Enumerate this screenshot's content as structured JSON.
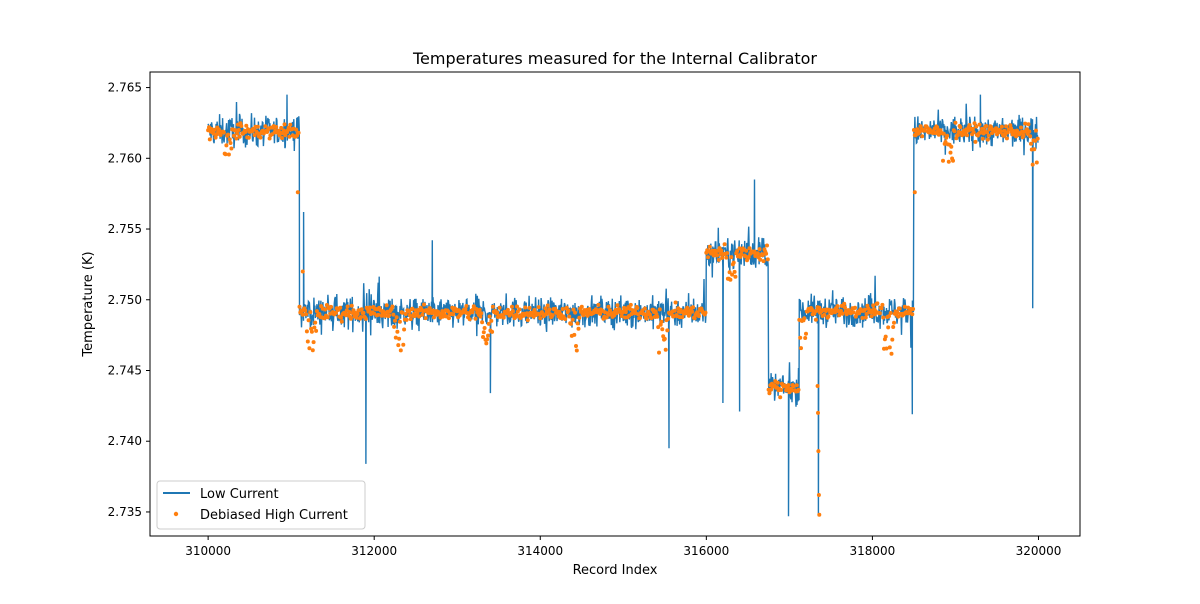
{
  "chart_data": {
    "type": "line",
    "title": "Temperatures measured for the Internal Calibrator",
    "xlabel": "Record Index",
    "ylabel": "Temperature (K)",
    "xlim": [
      309300,
      320500
    ],
    "ylim": [
      2.7333,
      2.7661
    ],
    "xticks": [
      310000,
      312000,
      314000,
      316000,
      318000,
      320000
    ],
    "xtick_labels": [
      "310000",
      "312000",
      "314000",
      "316000",
      "318000",
      "320000"
    ],
    "yticks": [
      2.735,
      2.74,
      2.745,
      2.75,
      2.755,
      2.76,
      2.765
    ],
    "ytick_labels": [
      "2.735",
      "2.740",
      "2.745",
      "2.750",
      "2.755",
      "2.760",
      "2.765"
    ],
    "legend": {
      "position": "lower-left"
    },
    "colors": {
      "low": "#1f77b4",
      "high": "#ff7f0e"
    },
    "segments": [
      {
        "x_start": 310000,
        "x_end": 311100,
        "level": 2.7619
      },
      {
        "x_start": 311100,
        "x_end": 316000,
        "level": 2.7491
      },
      {
        "x_start": 316000,
        "x_end": 316750,
        "level": 2.7533
      },
      {
        "x_start": 316750,
        "x_end": 317120,
        "level": 2.7438
      },
      {
        "x_start": 317120,
        "x_end": 318500,
        "level": 2.7492
      },
      {
        "x_start": 318500,
        "x_end": 320000,
        "level": 2.7619
      }
    ],
    "series": [
      {
        "name": "Low Current",
        "style": "line",
        "noise": 0.0009,
        "spikes": [
          {
            "x": 310950,
            "y": 2.7645
          },
          {
            "x": 311150,
            "y": 2.7562
          },
          {
            "x": 311900,
            "y": 2.7384
          },
          {
            "x": 312700,
            "y": 2.7542
          },
          {
            "x": 313400,
            "y": 2.7434
          },
          {
            "x": 315550,
            "y": 2.7395
          },
          {
            "x": 316200,
            "y": 2.7427
          },
          {
            "x": 316400,
            "y": 2.7421
          },
          {
            "x": 316580,
            "y": 2.7585
          },
          {
            "x": 316990,
            "y": 2.7347
          },
          {
            "x": 317350,
            "y": 2.7347
          },
          {
            "x": 318480,
            "y": 2.7419
          },
          {
            "x": 319300,
            "y": 2.7645
          },
          {
            "x": 319930,
            "y": 2.7494
          }
        ]
      },
      {
        "name": "Debiased High Current",
        "style": "markers",
        "noise": 0.0005,
        "spikes": [
          {
            "x": 311080,
            "y": 2.7576
          },
          {
            "x": 311140,
            "y": 2.752
          },
          {
            "x": 317340,
            "y": 2.7439
          },
          {
            "x": 317345,
            "y": 2.742
          },
          {
            "x": 317350,
            "y": 2.7393
          },
          {
            "x": 317355,
            "y": 2.7362
          },
          {
            "x": 317360,
            "y": 2.7348
          },
          {
            "x": 318510,
            "y": 2.7576
          }
        ]
      }
    ]
  }
}
